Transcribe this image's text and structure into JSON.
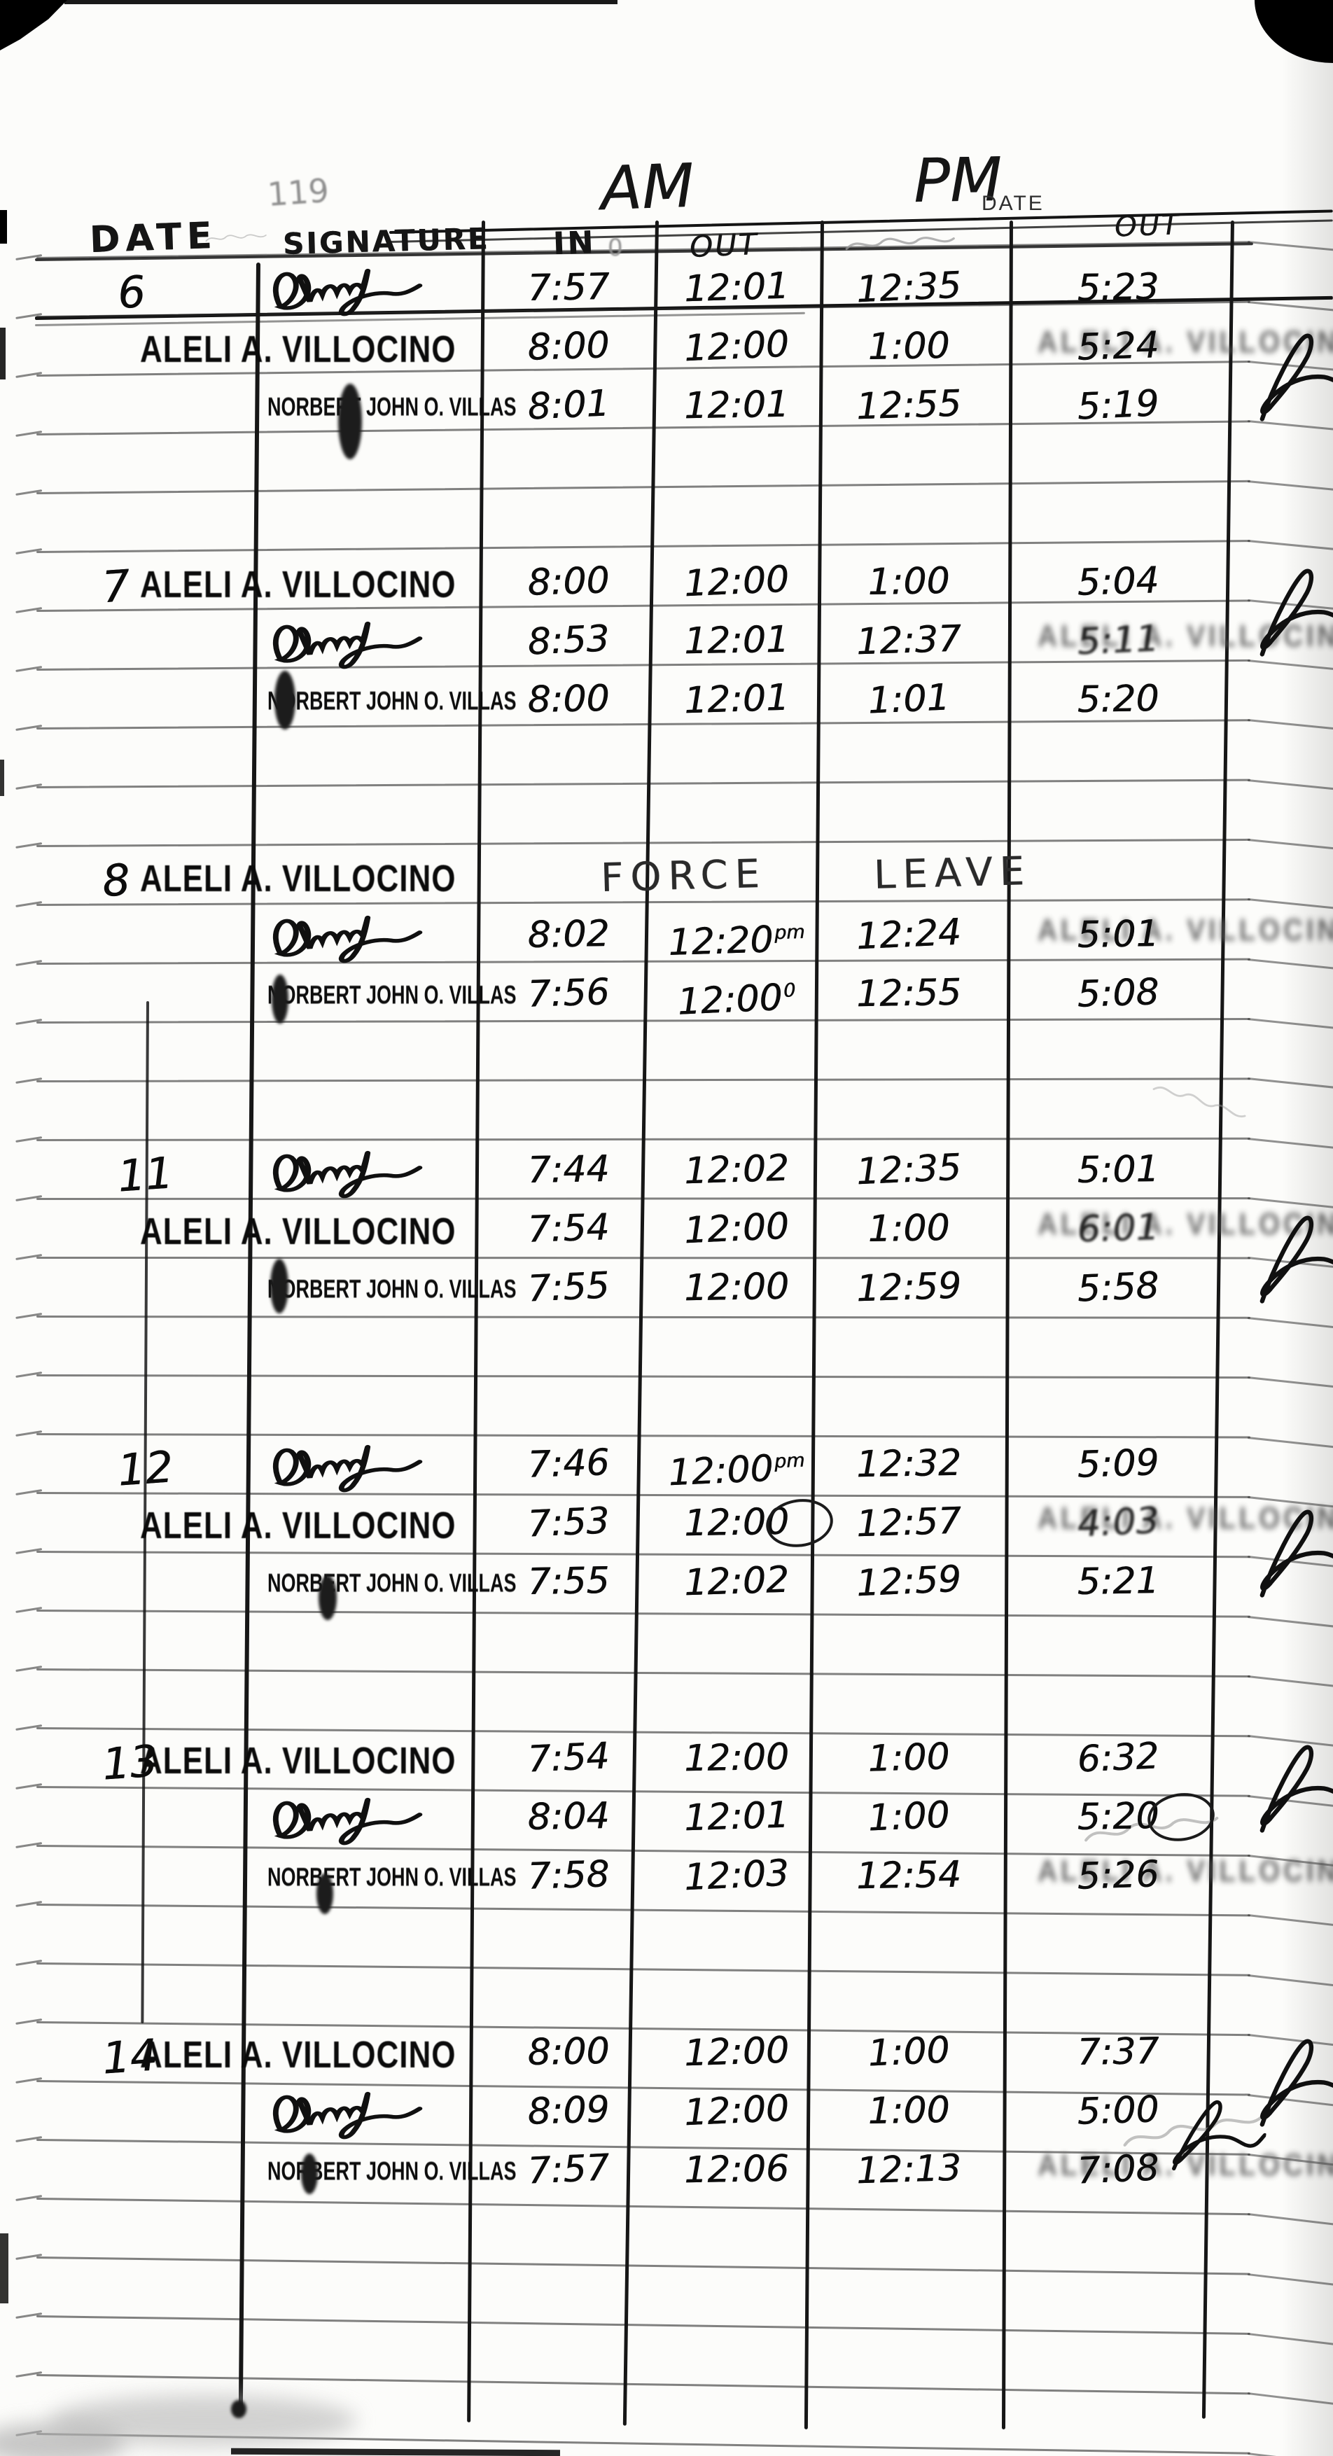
{
  "header": {
    "am": "AM",
    "pm": "PM",
    "printed_date": "DATE",
    "col_date": "DATE",
    "col_signature": "SIGNATURE",
    "col_am_in": "IN",
    "col_am_out": "OUT",
    "col_pm_out": "OUT",
    "pencil_ghost": "119",
    "pencil_zero": "0"
  },
  "stamps": {
    "aleli": "ALELI A. VILLOCINO",
    "norbert": "NORBERT JOHN O. VILLAS"
  },
  "force_leave": {
    "word1": "FORCE",
    "word2": "LEAVE"
  },
  "groups": [
    {
      "date": "6",
      "date_overlaps_stamp": false,
      "rows": [
        {
          "entity": "signature",
          "in_am": "7:57",
          "out_am": "12:01",
          "in_pm": "12:35",
          "out_pm": "5:23"
        },
        {
          "entity": "aleli-stamp",
          "in_am": "8:00",
          "out_am": "12:00",
          "in_pm": "1:00",
          "out_pm": "5:24",
          "smudge": "light",
          "right_sig": true
        },
        {
          "entity": "norbert-stamp",
          "in_am": "8:01",
          "out_am": "12:01",
          "in_pm": "12:55",
          "out_pm": "5:19"
        }
      ]
    },
    {
      "date": "7",
      "date_overlaps_stamp": true,
      "rows": [
        {
          "entity": "aleli-stamp",
          "in_am": "8:00",
          "out_am": "12:00",
          "in_pm": "1:00",
          "out_pm": "5:04",
          "right_sig": true
        },
        {
          "entity": "signature",
          "in_am": "8:53",
          "out_am": "12:01",
          "in_pm": "12:37",
          "out_pm": "5:11",
          "smudge": "heavy"
        },
        {
          "entity": "norbert-stamp",
          "in_am": "8:00",
          "out_am": "12:01",
          "in_pm": "1:01",
          "out_pm": "5:20"
        }
      ]
    },
    {
      "date": "8",
      "date_overlaps_stamp": true,
      "rows": [
        {
          "entity": "aleli-stamp",
          "force_leave": true
        },
        {
          "entity": "signature",
          "in_am": "8:02",
          "out_am": "12:20",
          "out_am_sup": "pm",
          "in_pm": "12:24",
          "out_pm": "5:01",
          "smudge": "light"
        },
        {
          "entity": "norbert-stamp",
          "in_am": "7:56",
          "out_am": "12:00",
          "out_am_sup": "0",
          "in_pm": "12:55",
          "out_pm": "5:08"
        }
      ]
    },
    {
      "date": "11",
      "date_overlaps_stamp": false,
      "rows": [
        {
          "entity": "signature",
          "in_am": "7:44",
          "out_am": "12:02",
          "in_pm": "12:35",
          "out_pm": "5:01"
        },
        {
          "entity": "aleli-stamp",
          "in_am": "7:54",
          "out_am": "12:00",
          "in_pm": "1:00",
          "out_pm": "6:01",
          "smudge": "heavy",
          "right_sig": true
        },
        {
          "entity": "norbert-stamp",
          "in_am": "7:55",
          "out_am": "12:00",
          "in_pm": "12:59",
          "out_pm": "5:58"
        }
      ]
    },
    {
      "date": "12",
      "date_overlaps_stamp": false,
      "rows": [
        {
          "entity": "signature",
          "in_am": "7:46",
          "out_am": "12:00",
          "out_am_sup": "pm",
          "in_pm": "12:32",
          "out_pm": "5:09"
        },
        {
          "entity": "aleli-stamp",
          "in_am": "7:53",
          "out_am": "12:00",
          "circle_out_am": true,
          "in_pm": "12:57",
          "out_pm": "4:03",
          "smudge": "heavy",
          "right_sig": true
        },
        {
          "entity": "norbert-stamp",
          "in_am": "7:55",
          "out_am": "12:02",
          "in_pm": "12:59",
          "out_pm": "5:21"
        }
      ]
    },
    {
      "date": "13",
      "date_overlaps_stamp": true,
      "rows": [
        {
          "entity": "aleli-stamp",
          "in_am": "7:54",
          "out_am": "12:00",
          "in_pm": "1:00",
          "out_pm": "6:32",
          "right_sig": true
        },
        {
          "entity": "signature",
          "in_am": "8:04",
          "out_am": "12:01",
          "in_pm": "1:00",
          "out_pm": "5:20",
          "circle_out_pm": true
        },
        {
          "entity": "norbert-stamp",
          "in_am": "7:58",
          "out_am": "12:03",
          "in_pm": "12:54",
          "out_pm": "5:26",
          "smudge": "light"
        }
      ]
    },
    {
      "date": "14",
      "date_overlaps_stamp": true,
      "rows": [
        {
          "entity": "aleli-stamp",
          "in_am": "8:00",
          "out_am": "12:00",
          "in_pm": "1:00",
          "out_pm": "7:37",
          "right_sig": true
        },
        {
          "entity": "signature",
          "in_am": "8:09",
          "out_am": "12:00",
          "in_pm": "1:00",
          "out_pm": "5:00",
          "right_sig": true
        },
        {
          "entity": "norbert-stamp",
          "in_am": "7:57",
          "out_am": "12:06",
          "in_pm": "12:13",
          "out_pm": "7:08",
          "smudge": "light"
        }
      ]
    }
  ]
}
